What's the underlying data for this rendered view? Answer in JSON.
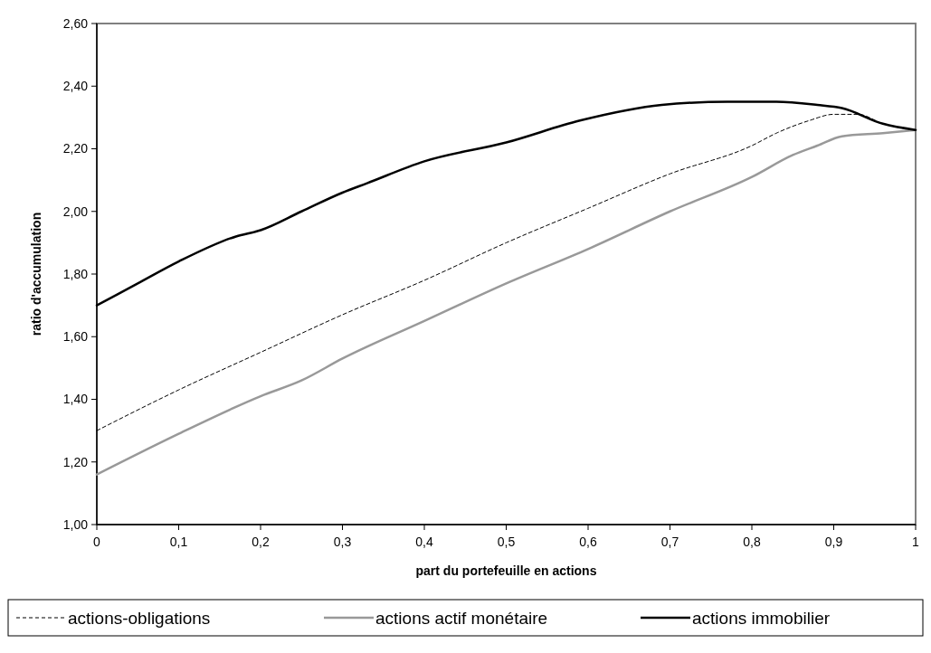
{
  "chart_data": {
    "type": "line",
    "xlabel": "part du portefeuille en actions",
    "ylabel": "ratio d'accumulation",
    "xlim": [
      0,
      1
    ],
    "xticks": [
      0,
      {
        "value": 0.1,
        "label": "0,1"
      },
      {
        "value": 0.2,
        "label": "0,2"
      },
      {
        "value": 0.3,
        "label": "0,3"
      },
      {
        "value": 0.4,
        "label": "0,4"
      },
      {
        "value": 0.5,
        "label": "0,5"
      },
      {
        "value": 0.6,
        "label": "0,6"
      },
      {
        "value": 0.7,
        "label": "0,7"
      },
      {
        "value": 0.8,
        "label": "0,8"
      },
      {
        "value": 0.9,
        "label": "0,9"
      },
      1
    ],
    "ylim": [
      1,
      2.6
    ],
    "yticks": [
      {
        "value": 1,
        "label": "1,00"
      },
      {
        "value": 1.2,
        "label": "1,20"
      },
      {
        "value": 1.4,
        "label": "1,40"
      },
      {
        "value": 1.6,
        "label": "1,60"
      },
      {
        "value": 1.8,
        "label": "1,80"
      },
      {
        "value": 2,
        "label": "2,00"
      },
      {
        "value": 2.2,
        "label": "2,20"
      },
      {
        "value": 2.4,
        "label": "2,40"
      },
      {
        "value": 2.6,
        "label": "2,60"
      }
    ],
    "grid": false,
    "legend": "bottom",
    "marker": "none",
    "series": [
      {
        "name": "actions-obligations",
        "color": "#000000",
        "line_style": "dashed",
        "x": [
          0,
          0.1,
          0.2,
          0.3,
          0.4,
          0.5,
          0.6,
          0.7,
          0.8,
          0.83,
          0.87,
          0.9,
          0.93,
          0.96,
          1
        ],
        "values": [
          1.3,
          1.43,
          1.55,
          1.67,
          1.78,
          1.9,
          2.01,
          2.12,
          2.21,
          2.25,
          2.29,
          2.31,
          2.31,
          2.28,
          2.26
        ]
      },
      {
        "name": "actions actif monétaire",
        "color": "#999999",
        "line_style": "solid",
        "x": [
          0,
          0.1,
          0.2,
          0.25,
          0.3,
          0.4,
          0.5,
          0.6,
          0.7,
          0.8,
          0.85,
          0.88,
          0.91,
          0.96,
          1
        ],
        "values": [
          1.16,
          1.29,
          1.41,
          1.46,
          1.53,
          1.65,
          1.77,
          1.88,
          2.0,
          2.11,
          2.18,
          2.21,
          2.24,
          2.25,
          2.26
        ]
      },
      {
        "name": "actions immobilier",
        "color": "#000000",
        "line_style": "solid",
        "x": [
          0,
          0.05,
          0.1,
          0.17,
          0.2,
          0.25,
          0.3,
          0.33,
          0.4,
          0.5,
          0.59,
          0.69,
          0.77,
          0.83,
          0.88,
          0.91,
          0.96,
          1
        ],
        "values": [
          1.7,
          1.77,
          1.84,
          1.92,
          1.94,
          2.0,
          2.06,
          2.09,
          2.16,
          2.22,
          2.29,
          2.34,
          2.35,
          2.35,
          2.34,
          2.33,
          2.28,
          2.26
        ]
      }
    ]
  }
}
